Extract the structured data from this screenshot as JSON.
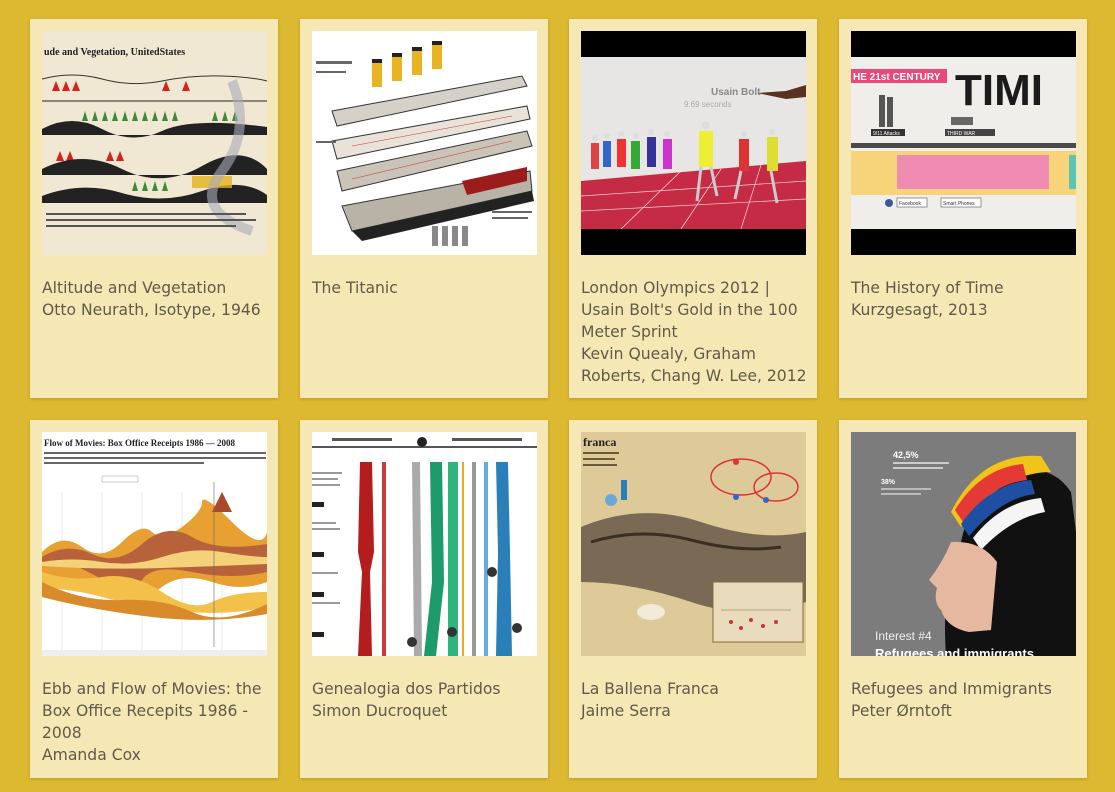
{
  "cards": [
    {
      "title": "Altitude and Vegetation",
      "author": "Otto Neurath, Isotype, 1946",
      "thumb_text": "ude and Vegetation, UnitedStates",
      "thumb_icon": "isotype-chart-thumbnail"
    },
    {
      "title": "The Titanic",
      "author": "",
      "thumb_text": "",
      "thumb_icon": "titanic-cutaway-thumbnail"
    },
    {
      "title": "London Olympics 2012 | Usain Bolt's Gold in the 100 Meter Sprint",
      "author": "Kevin Quealy, Graham Roberts, Chang W. Lee, 2012",
      "thumb_text": "Usain Bolt",
      "thumb_subtext": "9.69 seconds",
      "thumb_icon": "sprint-race-thumbnail"
    },
    {
      "title": "The History of Time",
      "author": "Kurzgesagt, 2013",
      "thumb_text": "HE 21st CENTURY",
      "thumb_big": "TIMI",
      "thumb_labels": [
        "9/11 Attacks",
        "THIRD WAR",
        "Facebook",
        "Smart Phones"
      ],
      "thumb_icon": "timeline-thumbnail"
    },
    {
      "title": "Ebb and Flow of Movies: the Box Office Recepits 1986 - 2008",
      "author": "Amanda Cox",
      "thumb_text": "Flow of Movies: Box Office Receipts 1986 — 2008",
      "thumb_icon": "streamgraph-thumbnail"
    },
    {
      "title": "Genealogia dos Partidos",
      "author": "Simon Ducroquet",
      "thumb_text": "",
      "thumb_icon": "party-genealogy-thumbnail"
    },
    {
      "title": "La Ballena Franca",
      "author": "Jaime Serra",
      "thumb_text": "franca",
      "thumb_icon": "whale-infographic-thumbnail"
    },
    {
      "title": "Refugees and Immigrants",
      "author": "Peter Ørntoft",
      "thumb_text": "Interest #4",
      "thumb_subtext": "Refugees and immigrants",
      "thumb_stats": [
        "42,5%",
        "38%"
      ],
      "thumb_icon": "portrait-poster-thumbnail"
    }
  ]
}
